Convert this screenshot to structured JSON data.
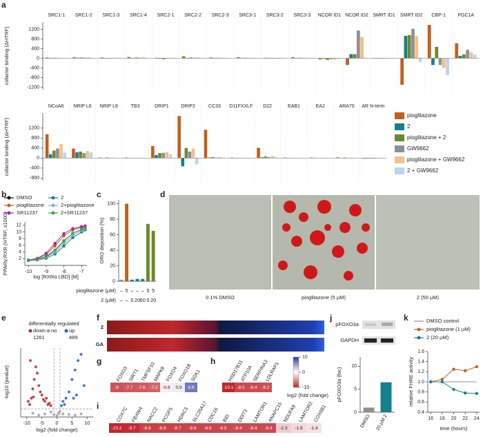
{
  "chart_data": [
    {
      "type": "grouped_bar",
      "panel": "a",
      "ylabel": "cofactor binding (ΔHTRF)",
      "categories": [
        "SRC1-1",
        "SRC1-2",
        "SRC1-3",
        "SRC1-4",
        "SRC2-1",
        "SRC2-2",
        "SRC2-3",
        "SRC3-1",
        "SRC3-2",
        "SRC3-3",
        "NCOR ID1",
        "NCOR ID2",
        "SMRT ID1",
        "SMRT ID2",
        "CBP-1",
        "PGC1A"
      ],
      "ylim": [
        -1300,
        1500
      ],
      "yticks": [
        -1200,
        -800,
        -400,
        0,
        400,
        800,
        1200
      ],
      "series": [
        {
          "name": "pioglitazone",
          "color": "#c0601a",
          "values": [
            30,
            40,
            30,
            50,
            20,
            80,
            30,
            40,
            20,
            40,
            -50,
            -280,
            10,
            -1100,
            1380,
            620
          ]
        },
        {
          "name": "2",
          "color": "#16808c",
          "values": [
            10,
            20,
            10,
            10,
            -20,
            10,
            10,
            10,
            10,
            10,
            -20,
            170,
            0,
            930,
            -280,
            100
          ]
        },
        {
          "name": "pioglitazone + 2",
          "color": "#6b8a2a",
          "values": [
            20,
            30,
            10,
            30,
            -40,
            30,
            20,
            20,
            10,
            20,
            -70,
            170,
            10,
            960,
            470,
            160
          ]
        },
        {
          "name": "GW9662",
          "color": "#909090",
          "values": [
            15,
            20,
            10,
            20,
            -10,
            20,
            10,
            10,
            10,
            10,
            -40,
            1150,
            5,
            1220,
            -280,
            350
          ]
        },
        {
          "name": "pioglitazone + GW9662",
          "color": "#f5c08a",
          "values": [
            10,
            40,
            20,
            40,
            20,
            40,
            20,
            20,
            30,
            20,
            -60,
            880,
            10,
            920,
            -400,
            250
          ]
        },
        {
          "name": "2 + GW9662",
          "color": "#bcd4ec",
          "values": [
            5,
            15,
            10,
            10,
            -30,
            10,
            5,
            10,
            10,
            5,
            -30,
            20,
            5,
            -150,
            -700,
            160
          ]
        }
      ]
    },
    {
      "type": "grouped_bar",
      "ylabel": "cofactor binding (ΔHTRF)",
      "legend": "right",
      "categories": [
        "NCoA6",
        "NRIP L6",
        "NRIP L8",
        "TB3",
        "DRIP1",
        "DRIP2",
        "CC33",
        "D11FXXLF",
        "D22",
        "EAB1",
        "EA2",
        "ARA70",
        "AR N-term"
      ],
      "ylim": [
        -900,
        1800
      ],
      "yticks": [
        -800,
        -400,
        0,
        400,
        800,
        1200
      ],
      "series": [
        {
          "name": "pioglitazone",
          "color": "#c0601a",
          "values": [
            950,
            380,
            20,
            20,
            480,
            1680,
            1130,
            20,
            410,
            20,
            20,
            30,
            -20
          ]
        },
        {
          "name": "2",
          "color": "#16808c",
          "values": [
            150,
            230,
            10,
            10,
            120,
            -330,
            20,
            10,
            30,
            10,
            10,
            10,
            -10
          ]
        },
        {
          "name": "pioglitazone + 2",
          "color": "#6b8a2a",
          "values": [
            300,
            260,
            20,
            10,
            200,
            400,
            40,
            10,
            60,
            10,
            10,
            20,
            -10
          ]
        },
        {
          "name": "GW9662",
          "color": "#909090",
          "values": [
            380,
            200,
            10,
            10,
            210,
            260,
            20,
            10,
            40,
            10,
            10,
            10,
            -10
          ]
        },
        {
          "name": "pioglitazone + GW9662",
          "color": "#f5c08a",
          "values": [
            560,
            280,
            20,
            10,
            240,
            380,
            40,
            10,
            80,
            10,
            10,
            20,
            -10
          ]
        },
        {
          "name": "2 + GW9662",
          "color": "#bcd4ec",
          "values": [
            220,
            230,
            10,
            10,
            150,
            -250,
            20,
            5,
            40,
            10,
            10,
            10,
            -10
          ]
        }
      ]
    },
    {
      "type": "line",
      "panel": "b",
      "xlabel": "log [RXRα LBD] [M]",
      "ylabel": "PPARγ:RXR (HTRF, x1000)",
      "x": [
        -10,
        -9.5,
        -9,
        -8.5,
        -8,
        -7.5,
        -7,
        -6.8
      ],
      "xlim": [
        -10.2,
        -6.7
      ],
      "xticks": [
        -10,
        -9,
        -8,
        -7
      ],
      "ylim": [
        0,
        13
      ],
      "yticks": [
        2,
        4,
        6,
        8,
        10,
        12
      ],
      "series": [
        {
          "name": "DMSO",
          "color": "#111111",
          "values": [
            1.5,
            1.8,
            2.6,
            4.5,
            7.3,
            9.6,
            10.8,
            11.2
          ]
        },
        {
          "name": "pioglitazone",
          "color": "#c0601a",
          "values": [
            1.6,
            2.0,
            3.2,
            5.8,
            8.8,
            10.6,
            11.4,
            11.6
          ]
        },
        {
          "name": "SR11237",
          "color": "#a020c0",
          "values": [
            1.6,
            2.1,
            3.6,
            6.6,
            9.5,
            11.0,
            11.6,
            11.8
          ]
        },
        {
          "name": "2",
          "color": "#16808c",
          "values": [
            1.4,
            1.6,
            2.1,
            3.4,
            5.8,
            8.3,
            10.0,
            10.6
          ]
        },
        {
          "name": "2+pioglitazone",
          "color": "#7ab0d8",
          "values": [
            1.4,
            1.7,
            2.4,
            4.0,
            6.6,
            9.0,
            10.5,
            11.0
          ]
        },
        {
          "name": "2+SR11237",
          "color": "#3aa83a",
          "values": [
            1.5,
            1.8,
            2.7,
            4.6,
            7.4,
            9.6,
            10.8,
            11.2
          ]
        }
      ]
    },
    {
      "type": "bar",
      "panel": "c",
      "ylabel": "ORO deposition (%)",
      "ylim": [
        0,
        105
      ],
      "yticks": [
        0,
        20,
        40,
        60,
        80,
        100
      ],
      "values": [
        2,
        100,
        2,
        3,
        3,
        74,
        65
      ],
      "colors": [
        "#909090",
        "#c0601a",
        "#16808c",
        "#16808c",
        "#16808c",
        "#6b8a2a",
        "#6b8a2a"
      ],
      "table": {
        "row_labels": [
          "pioglitazone (µM)",
          "2 (µM)"
        ],
        "rows": [
          [
            "–",
            "5",
            "–",
            "–",
            "–",
            "5",
            "5"
          ],
          [
            "–",
            "–",
            "5",
            "20",
            "50",
            "5",
            "20"
          ]
        ]
      }
    },
    {
      "type": "images",
      "panel": "d",
      "captions": [
        "0.1% DMSO",
        "pioglitazone (5 µM)",
        "2 (50 µM)"
      ]
    },
    {
      "type": "scatter",
      "panel": "e",
      "title": "differentially regulated",
      "xlabel": "log2 (fold change)",
      "ylabel": "-log10 (pvalue)",
      "xlim": [
        -12,
        12
      ],
      "ylim": [
        0,
        11
      ],
      "xticks": [
        -10,
        -5,
        0,
        5,
        10
      ],
      "vlines": [
        -1,
        1
      ],
      "hline": 1.3,
      "series": [
        {
          "name": "down",
          "count": 1261,
          "color": "#b8292f",
          "x": [
            -9,
            -8.5,
            -8,
            -7.5,
            -7,
            -6,
            -5,
            -4,
            -3,
            -2,
            -8.8,
            -6.5,
            -5.5,
            -3.5,
            -2.5,
            -9.5,
            -7.8,
            -4.5
          ],
          "y": [
            2,
            3,
            4.5,
            6,
            8,
            5,
            3.5,
            2.5,
            2,
            1.8,
            9,
            7,
            4,
            3,
            2.2,
            2.5,
            3.2,
            2.8
          ]
        },
        {
          "name": "no",
          "color": "#a0a0a0",
          "x": [
            -6,
            -4,
            -2,
            -1,
            0,
            0.5,
            1,
            2,
            4,
            6,
            -8,
            8
          ],
          "y": [
            0.3,
            0.5,
            0.8,
            0.4,
            0.2,
            0.6,
            0.9,
            0.5,
            0.4,
            0.3,
            0.6,
            0.5
          ]
        },
        {
          "name": "up",
          "count": 489,
          "color": "#1f5fd0",
          "x": [
            1.5,
            2,
            3,
            4,
            5,
            6,
            7,
            8,
            9,
            5.5,
            6.5,
            2.5
          ],
          "y": [
            1.8,
            2.5,
            3,
            4,
            6,
            7.5,
            9,
            10,
            5,
            3,
            3.5,
            2
          ]
        }
      ]
    },
    {
      "type": "stripes",
      "panel": "f",
      "rows": [
        "2",
        "GA"
      ]
    },
    {
      "type": "heat_table",
      "panel": "g",
      "labels": [
        "FOXO3",
        "SIRT1",
        "TMFSF10",
        "MAPK8",
        "FOXO4",
        "FOXO1B",
        "SGK1"
      ],
      "values": [
        -8,
        -7.7,
        -7.6,
        -7.2,
        -0.8,
        0.9,
        6.8
      ]
    },
    {
      "type": "heat_table",
      "panel": "h",
      "labels": [
        "HSD17B11",
        "ATP10A",
        "SERPINA3",
        "LDLRAP1"
      ],
      "values": [
        -10.1,
        -8.5,
        -8.4,
        -8.2
      ]
    },
    {
      "type": "heat_table",
      "panel": "i",
      "labels": [
        "COX7C",
        "FBXW4",
        "NACC2",
        "PCGF5",
        "HDAC3",
        "SLC25A17",
        "CDC16",
        "BID",
        "DDIT3",
        "LAMTOR1",
        "ANAPC15",
        "NDUFA9",
        "LAMTOR2",
        "COX6B1"
      ],
      "values": [
        -23.2,
        -9.7,
        -8.8,
        -8.8,
        -8.7,
        -8.6,
        -8.6,
        -8.5,
        -8.4,
        -8.4,
        -8.4,
        -2.3,
        -1.8,
        -1.4
      ]
    },
    {
      "type": "colorbar",
      "label": "log2 (fold change)",
      "lim": [
        -10,
        10
      ],
      "ticks": [
        10,
        0,
        -10
      ],
      "low": "#c0272d",
      "high": "#2b3a9c"
    },
    {
      "type": "bar",
      "panel": "j",
      "ylabel": "pFOXO3a (foc)",
      "blot_labels": [
        "pFOXO3a",
        "GAPDH"
      ],
      "categories": [
        "DMSO",
        "20 µM 2"
      ],
      "values": [
        1,
        6.5
      ],
      "colors": [
        "#909090",
        "#16808c"
      ],
      "ylim": [
        0,
        12
      ],
      "yticks": [
        0,
        5,
        10
      ]
    },
    {
      "type": "line",
      "panel": "k",
      "xlabel": "time (hours)",
      "ylabel": "relative FHRE activity",
      "x": [
        16,
        18,
        20,
        22,
        24
      ],
      "xlim": [
        15.5,
        24.5
      ],
      "xticks": [
        16,
        18,
        20,
        22,
        24
      ],
      "ylim": [
        0.4,
        1.6
      ],
      "yticks": [
        0.4,
        0.6,
        0.8,
        {
          "value": 1,
          "label": "1.0"
        },
        1.2,
        1.4,
        1.6
      ],
      "series": [
        {
          "name": "DMSO control",
          "color": "#909090",
          "marker": false,
          "values": [
            1,
            1,
            1,
            1,
            1
          ]
        },
        {
          "name": "pioglitazone (1 µM)",
          "color": "#c0601a",
          "values": [
            1.0,
            1.05,
            1.25,
            1.22,
            1.3
          ]
        },
        {
          "name": "2 (20 µM)",
          "color": "#16808c",
          "values": [
            1.0,
            1.0,
            0.85,
            0.78,
            0.77
          ]
        }
      ]
    }
  ]
}
